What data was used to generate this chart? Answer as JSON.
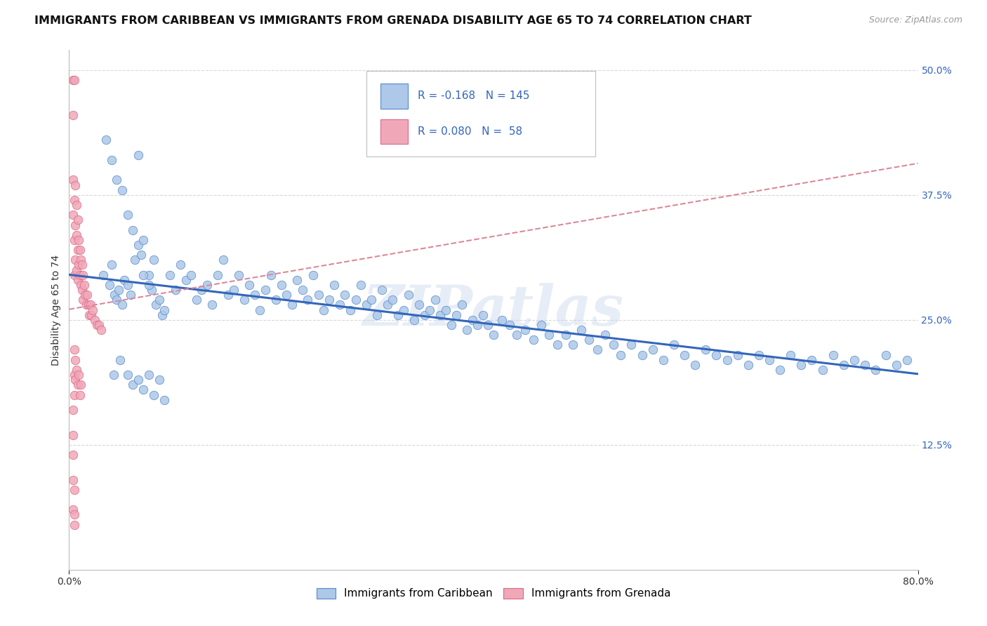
{
  "title": "IMMIGRANTS FROM CARIBBEAN VS IMMIGRANTS FROM GRENADA DISABILITY AGE 65 TO 74 CORRELATION CHART",
  "source": "Source: ZipAtlas.com",
  "ylabel": "Disability Age 65 to 74",
  "xlim": [
    0.0,
    0.8
  ],
  "ylim": [
    0.0,
    0.52
  ],
  "y_ticks_right": [
    0.125,
    0.25,
    0.375,
    0.5
  ],
  "y_tick_labels_right": [
    "12.5%",
    "25.0%",
    "37.5%",
    "50.0%"
  ],
  "caribbean_R": "-0.168",
  "caribbean_N": "145",
  "grenada_R": "0.080",
  "grenada_N": "58",
  "caribbean_color": "#adc8e8",
  "grenada_color": "#f0a8b8",
  "trendline_caribbean_color": "#3366bb",
  "trendline_grenada_color": "#dd8899",
  "background_color": "#ffffff",
  "grid_color": "#d8d8d8",
  "watermark": "ZIPatlas",
  "title_fontsize": 11.5,
  "axis_label_fontsize": 10,
  "tick_fontsize": 10,
  "legend_fontsize": 11,
  "caribbean_x": [
    0.032,
    0.038,
    0.04,
    0.043,
    0.045,
    0.047,
    0.05,
    0.052,
    0.055,
    0.058,
    0.062,
    0.065,
    0.068,
    0.07,
    0.075,
    0.078,
    0.082,
    0.085,
    0.088,
    0.09,
    0.035,
    0.04,
    0.045,
    0.05,
    0.055,
    0.06,
    0.065,
    0.07,
    0.075,
    0.08,
    0.095,
    0.1,
    0.105,
    0.11,
    0.115,
    0.12,
    0.125,
    0.13,
    0.135,
    0.14,
    0.145,
    0.15,
    0.155,
    0.16,
    0.165,
    0.17,
    0.175,
    0.18,
    0.185,
    0.19,
    0.195,
    0.2,
    0.205,
    0.21,
    0.215,
    0.22,
    0.225,
    0.23,
    0.235,
    0.24,
    0.245,
    0.25,
    0.255,
    0.26,
    0.265,
    0.27,
    0.275,
    0.28,
    0.285,
    0.29,
    0.295,
    0.3,
    0.305,
    0.31,
    0.315,
    0.32,
    0.325,
    0.33,
    0.335,
    0.34,
    0.345,
    0.35,
    0.355,
    0.36,
    0.365,
    0.37,
    0.375,
    0.38,
    0.385,
    0.39,
    0.395,
    0.4,
    0.408,
    0.415,
    0.422,
    0.43,
    0.438,
    0.445,
    0.452,
    0.46,
    0.468,
    0.475,
    0.483,
    0.49,
    0.498,
    0.505,
    0.513,
    0.52,
    0.53,
    0.54,
    0.55,
    0.56,
    0.57,
    0.58,
    0.59,
    0.6,
    0.61,
    0.62,
    0.63,
    0.64,
    0.65,
    0.66,
    0.67,
    0.68,
    0.69,
    0.7,
    0.71,
    0.72,
    0.73,
    0.74,
    0.75,
    0.76,
    0.77,
    0.78,
    0.79,
    0.042,
    0.048,
    0.055,
    0.06,
    0.065,
    0.07,
    0.075,
    0.08,
    0.085,
    0.09
  ],
  "caribbean_y": [
    0.295,
    0.285,
    0.305,
    0.275,
    0.27,
    0.28,
    0.265,
    0.29,
    0.285,
    0.275,
    0.31,
    0.325,
    0.315,
    0.33,
    0.295,
    0.28,
    0.265,
    0.27,
    0.255,
    0.26,
    0.43,
    0.41,
    0.39,
    0.38,
    0.355,
    0.34,
    0.415,
    0.295,
    0.285,
    0.31,
    0.295,
    0.28,
    0.305,
    0.29,
    0.295,
    0.27,
    0.28,
    0.285,
    0.265,
    0.295,
    0.31,
    0.275,
    0.28,
    0.295,
    0.27,
    0.285,
    0.275,
    0.26,
    0.28,
    0.295,
    0.27,
    0.285,
    0.275,
    0.265,
    0.29,
    0.28,
    0.27,
    0.295,
    0.275,
    0.26,
    0.27,
    0.285,
    0.265,
    0.275,
    0.26,
    0.27,
    0.285,
    0.265,
    0.27,
    0.255,
    0.28,
    0.265,
    0.27,
    0.255,
    0.26,
    0.275,
    0.25,
    0.265,
    0.255,
    0.26,
    0.27,
    0.255,
    0.26,
    0.245,
    0.255,
    0.265,
    0.24,
    0.25,
    0.245,
    0.255,
    0.245,
    0.235,
    0.25,
    0.245,
    0.235,
    0.24,
    0.23,
    0.245,
    0.235,
    0.225,
    0.235,
    0.225,
    0.24,
    0.23,
    0.22,
    0.235,
    0.225,
    0.215,
    0.225,
    0.215,
    0.22,
    0.21,
    0.225,
    0.215,
    0.205,
    0.22,
    0.215,
    0.21,
    0.215,
    0.205,
    0.215,
    0.21,
    0.2,
    0.215,
    0.205,
    0.21,
    0.2,
    0.215,
    0.205,
    0.21,
    0.205,
    0.2,
    0.215,
    0.205,
    0.21,
    0.195,
    0.21,
    0.195,
    0.185,
    0.19,
    0.18,
    0.195,
    0.175,
    0.19,
    0.17
  ],
  "grenada_x": [
    0.004,
    0.004,
    0.004,
    0.004,
    0.005,
    0.005,
    0.005,
    0.005,
    0.006,
    0.006,
    0.006,
    0.007,
    0.007,
    0.007,
    0.008,
    0.008,
    0.008,
    0.009,
    0.009,
    0.01,
    0.01,
    0.011,
    0.011,
    0.012,
    0.012,
    0.013,
    0.013,
    0.014,
    0.015,
    0.016,
    0.017,
    0.018,
    0.019,
    0.02,
    0.021,
    0.022,
    0.024,
    0.026,
    0.028,
    0.03,
    0.005,
    0.005,
    0.005,
    0.006,
    0.006,
    0.007,
    0.008,
    0.009,
    0.01,
    0.011,
    0.004,
    0.004,
    0.004,
    0.004,
    0.004,
    0.005,
    0.005,
    0.005
  ],
  "grenada_y": [
    0.49,
    0.455,
    0.39,
    0.355,
    0.49,
    0.37,
    0.33,
    0.295,
    0.385,
    0.345,
    0.31,
    0.365,
    0.335,
    0.3,
    0.35,
    0.32,
    0.29,
    0.33,
    0.305,
    0.32,
    0.295,
    0.31,
    0.285,
    0.305,
    0.28,
    0.295,
    0.27,
    0.285,
    0.275,
    0.265,
    0.275,
    0.265,
    0.255,
    0.265,
    0.255,
    0.26,
    0.25,
    0.245,
    0.245,
    0.24,
    0.22,
    0.195,
    0.175,
    0.21,
    0.19,
    0.2,
    0.185,
    0.195,
    0.175,
    0.185,
    0.16,
    0.135,
    0.115,
    0.09,
    0.06,
    0.08,
    0.055,
    0.045
  ]
}
